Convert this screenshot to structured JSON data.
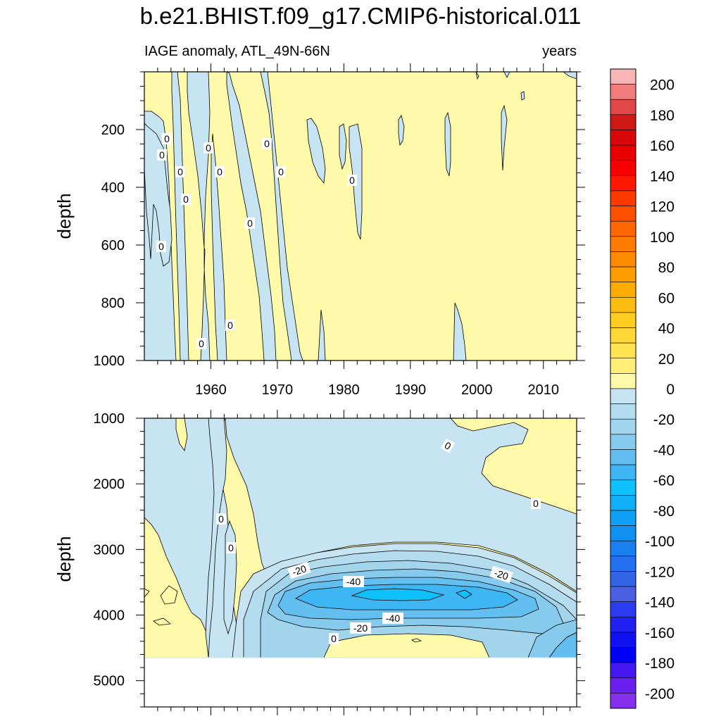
{
  "chart_data": {
    "type": "heatmap",
    "title": "b.e21.BHIST.f09_g17.CMIP6-historical.011",
    "subtitle_left": "IAGE anomaly, ATL_49N-66N",
    "subtitle_right": "years",
    "xlabel": "",
    "ylabel": "depth",
    "x_range": [
      1950,
      2015
    ],
    "x_ticks": [
      1960,
      1970,
      1980,
      1990,
      2000,
      2010
    ],
    "x_tick_labels": [
      "1960",
      "1970",
      "1980",
      "1990",
      "2000",
      "2010"
    ],
    "panels": [
      {
        "name": "upper",
        "ylim": [
          0,
          1000
        ],
        "y_ticks": [
          200,
          400,
          600,
          800,
          1000
        ],
        "y_tick_labels": [
          "200",
          "400",
          "600",
          "800",
          "1000"
        ],
        "background_level": "0 to 20",
        "contour_labels": [
          "0",
          "0",
          "0",
          "0",
          "0",
          "0",
          "0",
          "0",
          "0",
          "0",
          "0",
          "0",
          "0"
        ]
      },
      {
        "name": "lower",
        "ylim": [
          1000,
          5400
        ],
        "y_ticks": [
          1000,
          2000,
          3000,
          4000,
          5000
        ],
        "y_tick_labels": [
          "1000",
          "2000",
          "3000",
          "4000",
          "5000"
        ],
        "data_bottom_depth": 4620,
        "background_level": "-20 to 0",
        "min_region": {
          "center_year": 1990,
          "center_depth": 3650,
          "value_range": [
            -60,
            -40
          ]
        },
        "contour_labels": [
          "0",
          "0",
          "0",
          "0",
          "-20",
          "-40",
          "-20",
          "-40",
          "-20",
          "0"
        ]
      }
    ],
    "colorbar": {
      "levels": [
        "200",
        "180",
        "160",
        "140",
        "120",
        "100",
        "80",
        "60",
        "40",
        "20",
        "0",
        "-20",
        "-40",
        "-60",
        "-80",
        "-100",
        "-120",
        "-140",
        "-160",
        "-180",
        "-200"
      ],
      "colors": [
        "#f8b5b5",
        "#f07c7c",
        "#e04848",
        "#d01818",
        "#d80808",
        "#e80000",
        "#f80000",
        "#ff1800",
        "#ff3800",
        "#ff5000",
        "#ff6800",
        "#ff7c00",
        "#ff8c00",
        "#ff9c00",
        "#ffac00",
        "#ffbc10",
        "#ffcc20",
        "#ffd838",
        "#ffe450",
        "#ffee78",
        "#fffaaa",
        "#c7e4f2",
        "#b4dcef",
        "#a2d4ec",
        "#86cbee",
        "#63bff0",
        "#3fb6f4",
        "#10c0f8",
        "#10b0f8",
        "#10a0f5",
        "#1090f0",
        "#1a80f0",
        "#2470f0",
        "#3264e6",
        "#4a60e0",
        "#2c3cf0",
        "#2020f0",
        "#1010f0",
        "#0000f8",
        "#4418f0",
        "#6a20ee",
        "#8430ee"
      ]
    }
  }
}
